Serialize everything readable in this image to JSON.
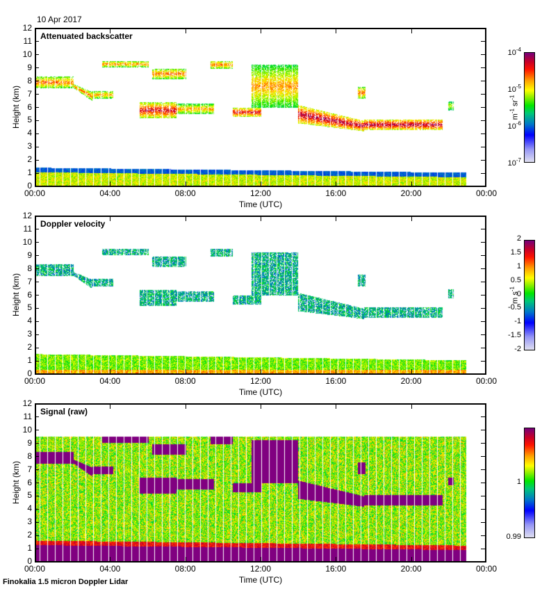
{
  "figure": {
    "date": "10 Apr 2017",
    "footer": "Finokalia 1.5 micron Doppler Lidar"
  },
  "chart_data": [
    {
      "type": "heatmap",
      "title": "Attenuated backscatter",
      "xlabel": "Time (UTC)",
      "ylabel": "Height (km)",
      "xlim_hours": [
        0,
        24
      ],
      "ylim": [
        0,
        12
      ],
      "xticks": [
        "00:00",
        "04:00",
        "08:00",
        "12:00",
        "16:00",
        "20:00",
        "00:00"
      ],
      "yticks": [
        "0",
        "1",
        "2",
        "3",
        "4",
        "5",
        "6",
        "7",
        "8",
        "9",
        "10",
        "11",
        "12"
      ],
      "data_end_hour": 23.0,
      "colorbar": {
        "scale": "log",
        "range": [
          1e-07,
          0.0001
        ],
        "ticks": [
          {
            "base": "10",
            "exp": "-4",
            "pos": 1.0
          },
          {
            "base": "10",
            "exp": "-5",
            "pos": 0.6667
          },
          {
            "base": "10",
            "exp": "-6",
            "pos": 0.3333
          },
          {
            "base": "10",
            "exp": "-7",
            "pos": 0.0
          }
        ],
        "unit_main": "m",
        "unit_sup1": "-1",
        "unit_mid": " sr",
        "unit_sup2": "-1"
      },
      "boundary_layer": {
        "top_km_start": 1.4,
        "top_km_end": 1.0,
        "core": "green-yellow",
        "top": "blue"
      },
      "features": [
        {
          "t0": 0.0,
          "t1": 2.0,
          "h0": 7.5,
          "h1": 8.4,
          "level": 0.85
        },
        {
          "t0": 2.0,
          "t1": 3.0,
          "h0": 6.3,
          "h1": 7.5,
          "level": 0.85
        },
        {
          "t0": 3.0,
          "t1": 4.1,
          "h0": 6.7,
          "h1": 7.3,
          "level": 0.8
        },
        {
          "t0": 3.5,
          "t1": 6.0,
          "h0": 9.1,
          "h1": 9.6,
          "level": 0.82
        },
        {
          "t0": 5.5,
          "t1": 7.5,
          "h0": 5.2,
          "h1": 6.4,
          "level": 0.95
        },
        {
          "t0": 6.2,
          "t1": 8.0,
          "h0": 8.2,
          "h1": 9.0,
          "level": 0.85
        },
        {
          "t0": 7.5,
          "t1": 9.5,
          "h0": 5.5,
          "h1": 6.3,
          "level": 0.8
        },
        {
          "t0": 9.3,
          "t1": 10.5,
          "h0": 9.0,
          "h1": 9.6,
          "level": 0.85
        },
        {
          "t0": 10.5,
          "t1": 12.0,
          "h0": 5.3,
          "h1": 6.0,
          "level": 0.95
        },
        {
          "t0": 11.5,
          "t1": 14.0,
          "h0": 6.0,
          "h1": 9.3,
          "level": 0.8
        },
        {
          "t0": 14.0,
          "t1": 17.5,
          "h0": 4.2,
          "h1": 6.2,
          "level": 1.0
        },
        {
          "t0": 17.2,
          "t1": 17.6,
          "h0": 6.7,
          "h1": 7.6,
          "level": 0.85
        },
        {
          "t0": 17.5,
          "t1": 21.7,
          "h0": 4.3,
          "h1": 5.1,
          "level": 1.0
        },
        {
          "t0": 22.0,
          "t1": 22.3,
          "h0": 5.8,
          "h1": 6.5,
          "level": 0.7
        }
      ]
    },
    {
      "type": "heatmap",
      "title": "Doppler velocity",
      "xlabel": "Time (UTC)",
      "ylabel": "Height (km)",
      "xlim_hours": [
        0,
        24
      ],
      "ylim": [
        0,
        12
      ],
      "xticks": [
        "00:00",
        "04:00",
        "08:00",
        "12:00",
        "16:00",
        "20:00",
        "00:00"
      ],
      "yticks": [
        "0",
        "1",
        "2",
        "3",
        "4",
        "5",
        "6",
        "7",
        "8",
        "9",
        "10",
        "11",
        "12"
      ],
      "data_end_hour": 23.0,
      "colorbar": {
        "scale": "linear",
        "range": [
          -2,
          2
        ],
        "ticks": [
          {
            "label": "2",
            "pos": 1.0
          },
          {
            "label": "1.5",
            "pos": 0.875
          },
          {
            "label": "1",
            "pos": 0.75
          },
          {
            "label": "0.5",
            "pos": 0.625
          },
          {
            "label": "0",
            "pos": 0.5
          },
          {
            "label": "-0.5",
            "pos": 0.375
          },
          {
            "label": "-1",
            "pos": 0.25
          },
          {
            "label": "-1.5",
            "pos": 0.125
          },
          {
            "label": "-2",
            "pos": 0.0
          }
        ],
        "unit_main": "m s",
        "unit_sup1": "-1"
      },
      "boundary_layer": {
        "top_km_start": 1.5,
        "top_km_end": 1.0,
        "core": "green-yellow"
      },
      "features": "same cloud mask as attenuated backscatter, velocity values mostly -1 to 0 m/s (blue-green)"
    },
    {
      "type": "heatmap",
      "title": "Signal (raw)",
      "xlabel": "Time (UTC)",
      "ylabel": "Height (km)",
      "xlim_hours": [
        0,
        24
      ],
      "ylim": [
        0,
        12
      ],
      "xticks": [
        "00:00",
        "04:00",
        "08:00",
        "12:00",
        "16:00",
        "20:00",
        "00:00"
      ],
      "yticks": [
        "0",
        "1",
        "2",
        "3",
        "4",
        "5",
        "6",
        "7",
        "8",
        "9",
        "10",
        "11",
        "12"
      ],
      "data_end_hour": 23.0,
      "data_top_km": 9.6,
      "colorbar": {
        "scale": "linear",
        "range": [
          0.99,
          1.01
        ],
        "ticks": [
          {
            "label": "1",
            "pos": 0.5
          },
          {
            "label": "0.99",
            "pos": 0.0
          }
        ]
      },
      "boundary_layer": {
        "top_km_start": 1.4,
        "top_km_end": 1.0,
        "core": "purple"
      },
      "features": "noise background (green-yellow) with purple cloud signals matching backscatter clouds"
    }
  ]
}
